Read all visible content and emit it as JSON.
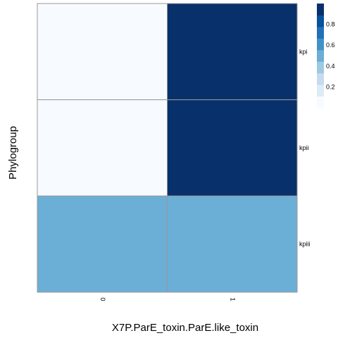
{
  "chart_data": {
    "type": "heatmap",
    "xlabel": "X7P.ParE_toxin.ParE.like_toxin",
    "ylabel": "Phylogroup",
    "x_categories": [
      "0",
      "1"
    ],
    "y_categories": [
      "kpi",
      "kpii",
      "kpiii"
    ],
    "values": [
      [
        0.0,
        1.0
      ],
      [
        0.0,
        1.0
      ],
      [
        0.5,
        0.5
      ]
    ],
    "colorbar": {
      "ticks": [
        0.2,
        0.4,
        0.6,
        0.8
      ],
      "range": [
        0,
        1
      ],
      "colors": [
        "#f7fbff",
        "#deebf7",
        "#c6dbef",
        "#9ecae1",
        "#6baed6",
        "#4292c6",
        "#2171b5",
        "#08519c",
        "#08306b"
      ]
    },
    "cell_border_color": "#999999"
  }
}
